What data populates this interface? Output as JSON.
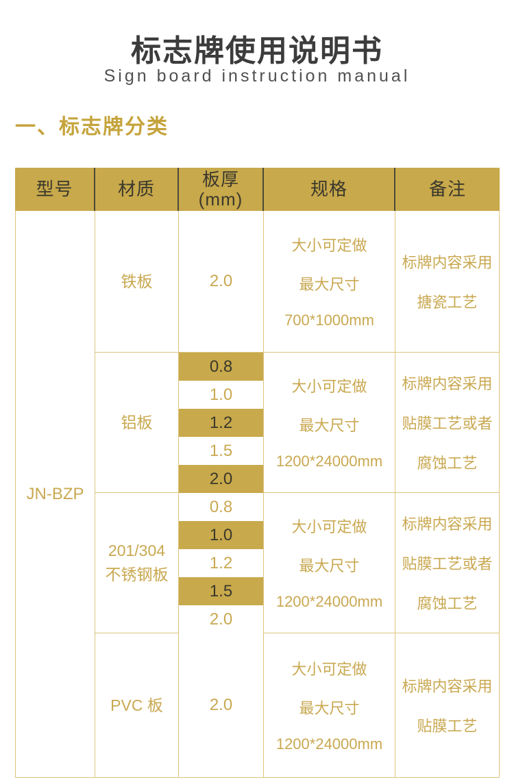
{
  "page": {
    "title": "标志牌使用说明书",
    "subtitle": "Sign board instruction manual",
    "section_heading": "一、标志牌分类"
  },
  "colors": {
    "gold": "#c8a94b",
    "border_gold": "#dcc47e",
    "gold_text": "#c9a851",
    "dark_on_gold": "#3a382c",
    "header_sep": "#4b4936",
    "heading_gold": "#c5a43c",
    "title_dark": "#3c3c3c",
    "subtitle_gray": "#505050"
  },
  "table": {
    "headers": [
      "型号",
      "材质",
      "板厚\n(mm)",
      "规格",
      "备注"
    ],
    "model": "JN-BZP",
    "rows": [
      {
        "material": "铁板",
        "thickness": [
          "2.0"
        ],
        "spec_lines": [
          "大小可定做",
          "最大尺寸",
          "700*1000mm"
        ],
        "note_lines": [
          "标牌内容采用",
          "搪瓷工艺"
        ]
      },
      {
        "material": "铝板",
        "thickness": [
          "0.8",
          "1.0",
          "1.2",
          "1.5",
          "2.0"
        ],
        "spec_lines": [
          "大小可定做",
          "最大尺寸",
          "1200*24000mm"
        ],
        "note_lines": [
          "标牌内容采用",
          "贴膜工艺或者",
          "腐蚀工艺"
        ]
      },
      {
        "material": "201/304\n不锈钢板",
        "thickness": [
          "0.8",
          "1.0",
          "1.2",
          "1.5",
          "2.0"
        ],
        "spec_lines": [
          "大小可定做",
          "最大尺寸",
          "1200*24000mm"
        ],
        "note_lines": [
          "标牌内容采用",
          "贴膜工艺或者",
          "腐蚀工艺"
        ]
      },
      {
        "material": "PVC 板",
        "thickness": [
          "2.0"
        ],
        "spec_lines": [
          "大小可定做",
          "最大尺寸",
          "1200*24000mm"
        ],
        "note_lines": [
          "标牌内容采用",
          "贴膜工艺"
        ]
      }
    ]
  }
}
